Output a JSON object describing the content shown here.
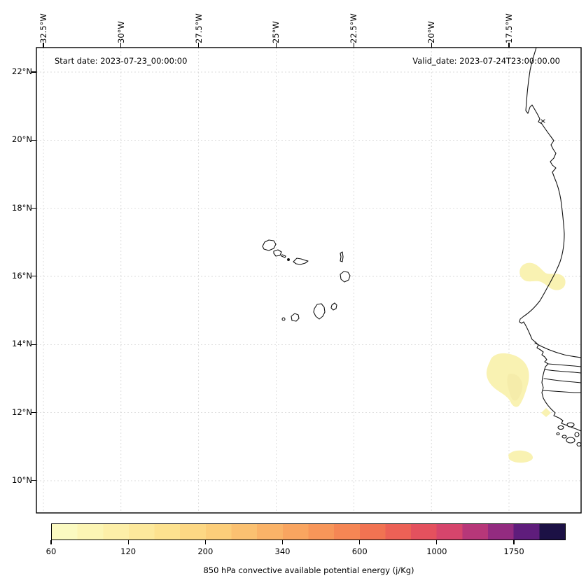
{
  "figure": {
    "background": "#ffffff"
  },
  "annotations": {
    "start_date": "Start date: 2023-07-23_00:00:00",
    "valid_date": "Valid_date: 2023-07-24T23:00:00.00"
  },
  "chart_data": {
    "type": "heatmap",
    "subtype": "filled-contour-geographic-map",
    "title": "",
    "xlabel": "",
    "ylabel": "",
    "colorbar_label": "850 hPa convective available potential energy (j/Kg)",
    "x_axis": {
      "ticks": [
        "32.5°W",
        "30°W",
        "27.5°W",
        "25°W",
        "22.5°W",
        "20°W",
        "17.5°W"
      ],
      "label_orientation": "rotated 90°",
      "position": "top"
    },
    "y_axis": {
      "ticks": [
        "22°N",
        "20°N",
        "18°N",
        "16°N",
        "14°N",
        "12°N",
        "10°N"
      ],
      "position": "left"
    },
    "map_extent": {
      "lon_west": "32.7°W",
      "lon_east": "15.2°W",
      "lat_south": "8.9°N",
      "lat_north": "22.7°N"
    },
    "grid": {
      "on": true,
      "style": "dashed",
      "color": "#cfcfcf"
    },
    "colorbar": {
      "orientation": "horizontal",
      "tick_labels": [
        "60",
        "120",
        "200",
        "340",
        "600",
        "1000",
        "1750"
      ],
      "segment_count": 20,
      "colors": [
        "#fbfac1",
        "#fcf5b4",
        "#fdefa8",
        "#fde99c",
        "#fde28f",
        "#fdd884",
        "#fcce7a",
        "#fbc171",
        "#fab368",
        "#f9a560",
        "#f79659",
        "#f58654",
        "#f17352",
        "#ec6156",
        "#e4515e",
        "#d6456c",
        "#b73779",
        "#932b80",
        "#5f1d7c",
        "#1c1145"
      ],
      "border_color": "#000000"
    },
    "cape_filled_regions": [
      {
        "lon": "16.9°W",
        "lat": "16.1°N",
        "value_jkg": "60-120",
        "note": "two-lobed patch straddling the coast near 16°N"
      },
      {
        "lon": "17.4°W",
        "lat": "13.3°N",
        "value_jkg": "60-120",
        "note": "offshore teardrop blob west of Gambia"
      },
      {
        "lon": "16.2°W",
        "lat": "12.1°N",
        "value_jkg": "60",
        "note": "small diamond patch"
      },
      {
        "lon": "17.0°W",
        "lat": "10.7°N",
        "value_jkg": "60-80",
        "note": "small elongated blob"
      }
    ],
    "geography": [
      "Cape Verde islands",
      "West African coastline: Mauritania, Senegal, The Gambia, Guinea-Bissau"
    ],
    "feature_colors": {
      "coastline": "#111111",
      "cape_low_fill": "#f9f2b2",
      "cape_low_fill_inner": "#f5ecaa"
    }
  }
}
